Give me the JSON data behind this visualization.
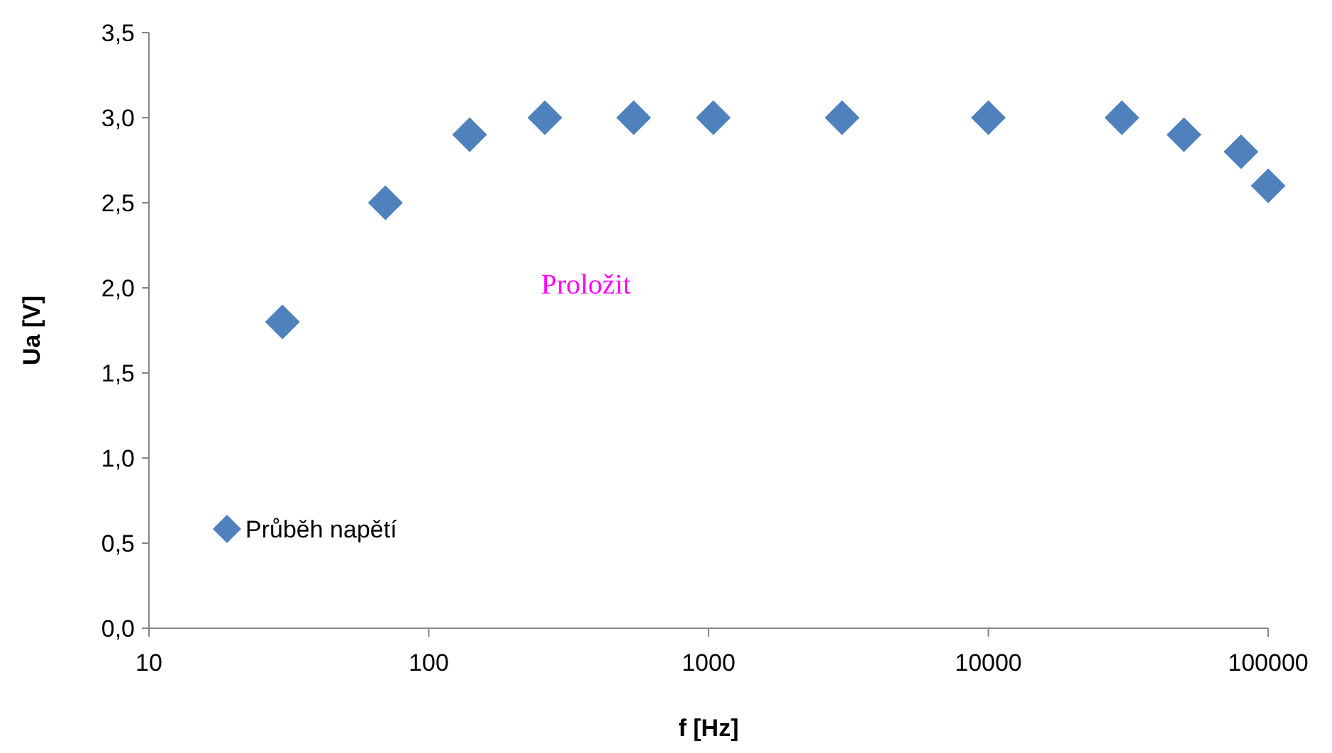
{
  "chart_data": {
    "type": "scatter",
    "xlabel": "f [Hz]",
    "ylabel": "Ua [V]",
    "log": "x",
    "x": [
      30,
      70,
      140,
      260,
      540,
      1040,
      3000,
      10000,
      30000,
      50000,
      80000,
      100000
    ],
    "series": [
      {
        "name": "Průběh napětí",
        "color": "#4f81bd",
        "values": [
          1.8,
          2.5,
          2.9,
          3.0,
          3.0,
          3.0,
          3.0,
          3.0,
          3.0,
          2.9,
          2.8,
          2.6
        ]
      }
    ],
    "xlim": [
      10,
      100000
    ],
    "xticks": [
      10,
      100,
      1000,
      10000,
      100000
    ],
    "ylim": [
      0,
      3.5
    ],
    "yticks": [
      {
        "value": 0,
        "label": "0,0"
      },
      {
        "value": 0.5,
        "label": "0,5"
      },
      {
        "value": 1,
        "label": "1,0"
      },
      {
        "value": 1.5,
        "label": "1,5"
      },
      {
        "value": 2,
        "label": "2,0"
      },
      {
        "value": 2.5,
        "label": "2,5"
      },
      {
        "value": 3,
        "label": "3,0"
      },
      {
        "value": 3.5,
        "label": "3,5"
      }
    ],
    "marker": "diamond",
    "legend": "bottom left",
    "grid": false,
    "annotations": [
      "Proložit"
    ]
  }
}
